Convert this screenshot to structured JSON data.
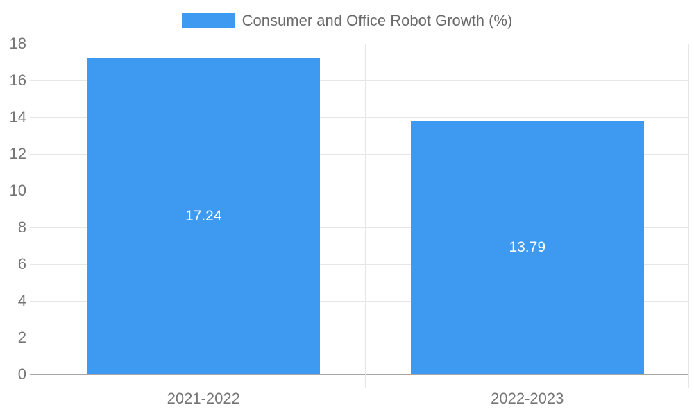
{
  "chart_data": {
    "type": "bar",
    "title": "Consumer and Office Robot Growth (%)",
    "legend": {
      "position": "top",
      "label": "Consumer and Office Robot Growth (%)"
    },
    "categories": [
      "2021-2022",
      "2022-2023"
    ],
    "series": [
      {
        "name": "Consumer and Office Robot Growth (%)",
        "values": [
          17.24,
          13.79
        ],
        "value_labels": [
          "17.24",
          "13.79"
        ]
      }
    ],
    "xlabel": "",
    "ylabel": "",
    "ylim": [
      0,
      18
    ],
    "ytick_step": 2,
    "ytick_labels": [
      "0",
      "2",
      "4",
      "6",
      "8",
      "10",
      "12",
      "14",
      "16",
      "18"
    ],
    "grid": true,
    "colors": {
      "bar": "#3D9AF0",
      "gridline": "#e6e6e6",
      "axis": "#a6a6a6",
      "tick_label": "#757575",
      "legend_text": "#696969",
      "value_label": "#ffffff",
      "background": "#ffffff"
    }
  }
}
